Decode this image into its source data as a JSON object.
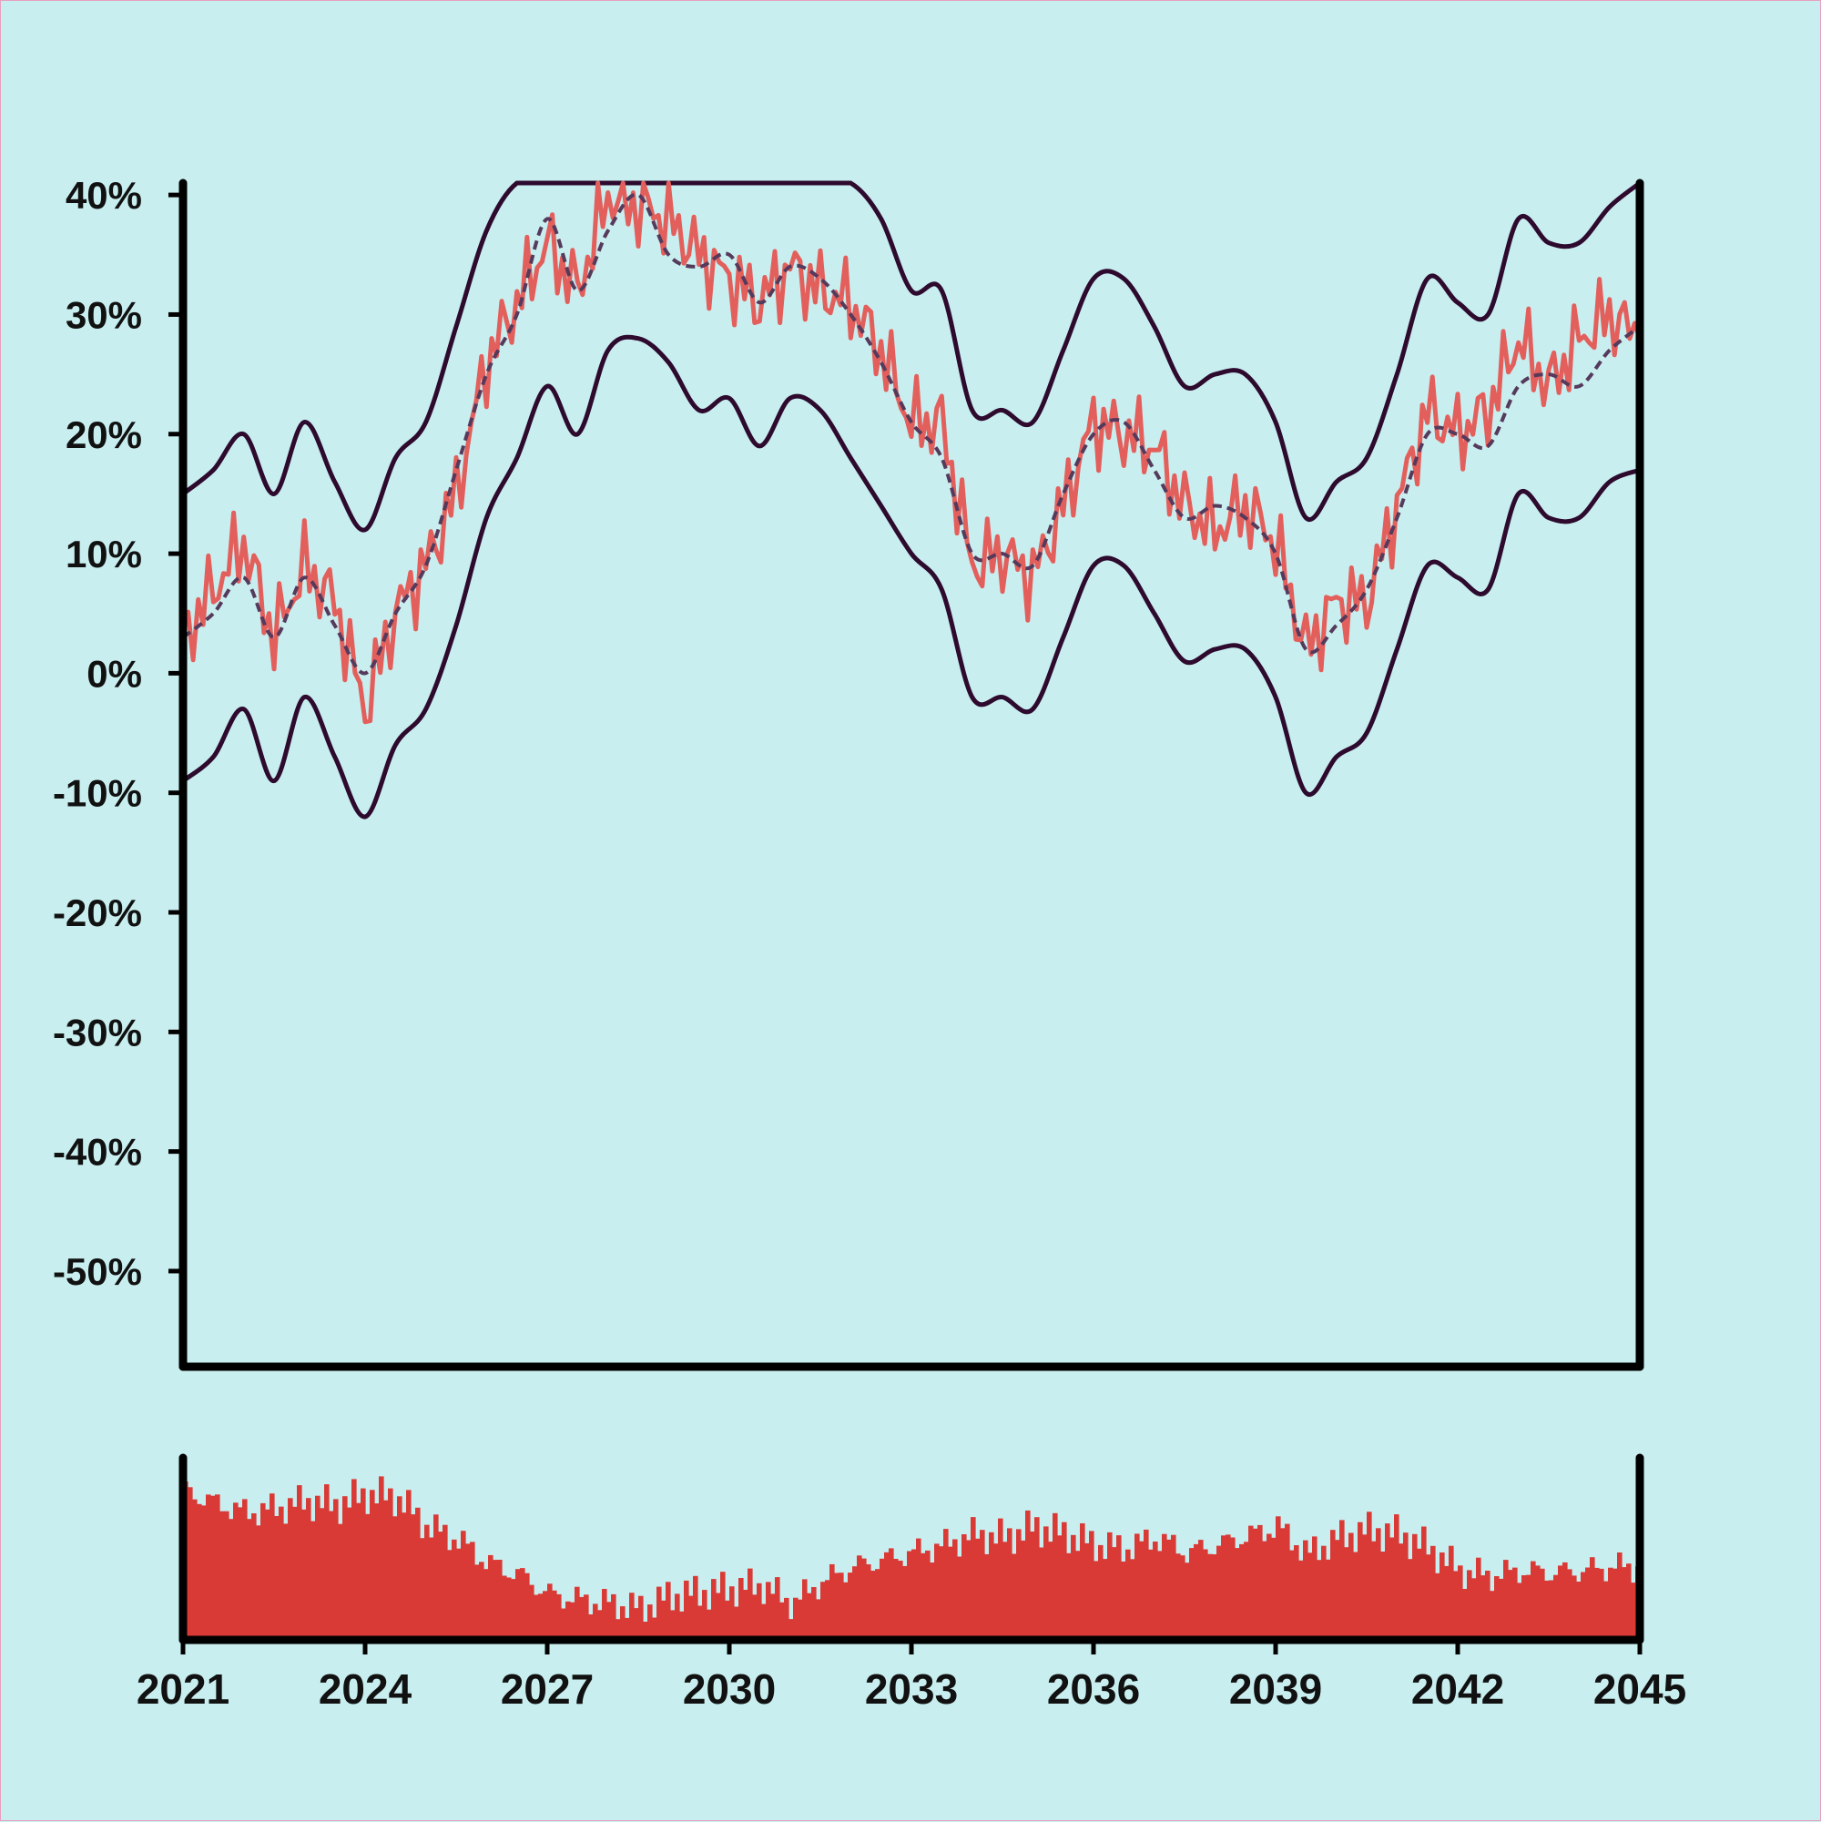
{
  "colors": {
    "background": "#c9eeef",
    "axis": "#000000",
    "price_line": "#e35f5c",
    "band_line": "#2d0a2e",
    "middle_line": "#553a5c",
    "volume_bars": "#d93a36"
  },
  "chart_data": [
    {
      "type": "line",
      "title": "",
      "xlabel": "",
      "ylabel": "",
      "x_range": [
        2021,
        2045
      ],
      "ylim": [
        -58,
        41
      ],
      "y_unit": "%",
      "y_ticks": [
        "40%",
        "30%",
        "20%",
        "10%",
        "0%",
        "-10%",
        "-20%",
        "-30%",
        "-40%",
        "-50%"
      ],
      "y_tick_values": [
        40,
        30,
        20,
        10,
        0,
        -10,
        -20,
        -30,
        -40,
        -50
      ],
      "grid": false,
      "legend": "none",
      "clip_top": 41,
      "x": [
        2021.0,
        2021.5,
        2022.0,
        2022.5,
        2023.0,
        2023.5,
        2024.0,
        2024.5,
        2025.0,
        2025.5,
        2026.0,
        2026.5,
        2027.0,
        2027.5,
        2028.0,
        2028.5,
        2029.0,
        2029.5,
        2030.0,
        2030.5,
        2031.0,
        2031.5,
        2032.0,
        2032.5,
        2033.0,
        2033.5,
        2034.0,
        2034.5,
        2035.0,
        2035.5,
        2036.0,
        2036.5,
        2037.0,
        2037.5,
        2038.0,
        2038.5,
        2039.0,
        2039.5,
        2040.0,
        2040.5,
        2041.0,
        2041.5,
        2042.0,
        2042.5,
        2043.0,
        2043.5,
        2044.0,
        2044.5,
        2045.0
      ],
      "series": [
        {
          "role": "price",
          "values": [
            3,
            7,
            11,
            3,
            9,
            6,
            -3,
            5,
            9,
            15,
            26,
            31,
            36,
            32,
            40,
            39,
            38,
            35,
            33,
            31,
            34,
            32,
            31,
            27,
            21,
            21,
            9,
            10,
            8,
            14,
            21,
            20,
            19,
            14,
            12,
            14,
            11,
            2,
            6,
            6,
            14,
            22,
            20,
            22,
            28,
            24,
            28,
            30,
            28
          ]
        },
        {
          "role": "middle",
          "values": [
            3,
            5,
            8,
            3,
            8,
            4,
            0,
            5,
            9,
            17,
            25,
            30,
            38,
            32,
            37,
            40,
            35,
            34,
            35,
            31,
            34,
            33,
            30,
            26,
            21,
            18,
            10,
            10,
            9,
            15,
            20,
            21,
            17,
            13,
            14,
            13,
            10,
            2,
            4,
            7,
            13,
            20,
            20,
            19,
            24,
            25,
            24,
            27,
            29
          ]
        },
        {
          "role": "upper_band",
          "values": [
            15,
            17,
            20,
            15,
            21,
            16,
            12,
            18,
            21,
            29,
            37,
            41,
            41,
            41,
            41,
            41,
            41,
            41,
            41,
            41,
            41,
            41,
            41,
            38,
            32,
            32,
            22,
            22,
            21,
            27,
            33,
            33,
            29,
            24,
            25,
            25,
            21,
            13,
            16,
            18,
            25,
            33,
            31,
            30,
            38,
            36,
            36,
            39,
            41
          ]
        },
        {
          "role": "lower_band",
          "values": [
            -9,
            -7,
            -3,
            -9,
            -2,
            -7,
            -12,
            -6,
            -3,
            4,
            13,
            18,
            24,
            20,
            27,
            28,
            26,
            22,
            23,
            19,
            23,
            22,
            18,
            14,
            10,
            7,
            -2,
            -2,
            -3,
            3,
            9,
            9,
            5,
            1,
            2,
            2,
            -2,
            -10,
            -7,
            -5,
            2,
            9,
            8,
            7,
            15,
            13,
            13,
            16,
            17
          ]
        }
      ]
    },
    {
      "type": "bar",
      "title": "",
      "x_range": [
        2021,
        2045
      ],
      "x_ticks": [
        "2021",
        "2024",
        "2027",
        "2030",
        "2033",
        "2036",
        "2039",
        "2042",
        "2045"
      ],
      "x_tick_values": [
        2021,
        2024,
        2027,
        2030,
        2033,
        2036,
        2039,
        2042,
        2045
      ],
      "ylim": [
        0,
        100
      ],
      "grid": false,
      "x": [
        2021.0,
        2021.5,
        2022.0,
        2022.5,
        2023.0,
        2023.5,
        2024.0,
        2024.5,
        2025.0,
        2025.5,
        2026.0,
        2026.5,
        2027.0,
        2027.5,
        2028.0,
        2028.5,
        2029.0,
        2029.5,
        2030.0,
        2030.5,
        2031.0,
        2031.5,
        2032.0,
        2032.5,
        2033.0,
        2033.5,
        2034.0,
        2034.5,
        2035.0,
        2035.5,
        2036.0,
        2036.5,
        2037.0,
        2037.5,
        2038.0,
        2038.5,
        2039.0,
        2039.5,
        2040.0,
        2040.5,
        2041.0,
        2041.5,
        2042.0,
        2042.5,
        2043.0,
        2043.5,
        2044.0,
        2044.5,
        2045.0
      ],
      "values": [
        82,
        75,
        70,
        72,
        76,
        74,
        80,
        78,
        62,
        55,
        42,
        36,
        25,
        22,
        20,
        17,
        24,
        26,
        28,
        30,
        20,
        32,
        40,
        44,
        48,
        52,
        58,
        56,
        62,
        58,
        52,
        50,
        56,
        48,
        52,
        57,
        62,
        47,
        56,
        60,
        58,
        50,
        38,
        35,
        38,
        37,
        38,
        40,
        40
      ]
    }
  ]
}
